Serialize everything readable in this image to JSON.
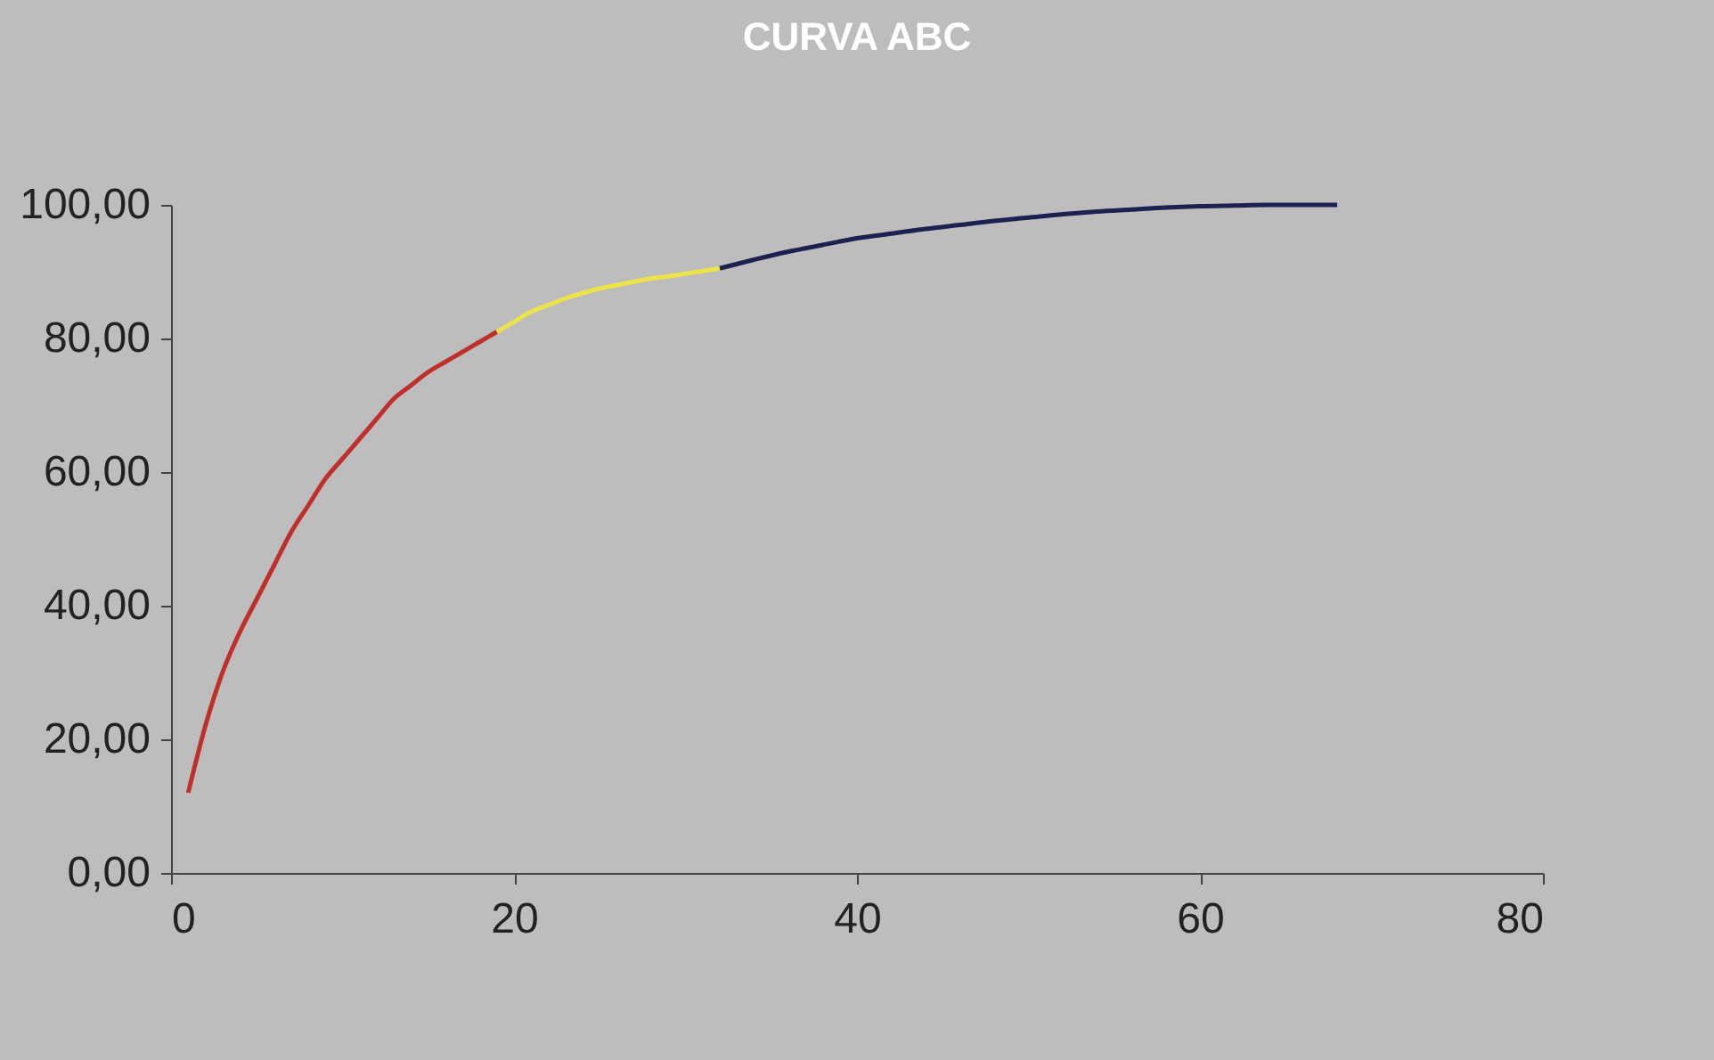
{
  "chart_data": {
    "type": "line",
    "title": "CURVA ABC",
    "xlim": [
      0,
      80
    ],
    "xticks": [
      0,
      20,
      40,
      60,
      80
    ],
    "ylim": [
      0,
      100
    ],
    "yticks": [
      {
        "value": 0,
        "label": "0,00"
      },
      {
        "value": 20,
        "label": "20,00"
      },
      {
        "value": 40,
        "label": "40,00"
      },
      {
        "value": 60,
        "label": "60,00"
      },
      {
        "value": 80,
        "label": "80,00"
      },
      {
        "value": 100,
        "label": "100,00"
      }
    ],
    "series": [
      {
        "color": "#c0302a",
        "x": [
          1,
          2,
          3,
          4,
          5,
          6,
          7,
          8,
          9,
          10,
          11,
          12,
          13,
          14,
          15,
          16,
          17,
          18,
          19
        ],
        "values": [
          12,
          22,
          30,
          36,
          41,
          46,
          51,
          55,
          59,
          62,
          65,
          68,
          71,
          73,
          75,
          76.5,
          78,
          79.5,
          81
        ]
      },
      {
        "color": "#ece24a",
        "x": [
          19,
          20,
          21,
          22,
          23,
          24,
          25,
          26,
          27,
          28,
          29,
          30,
          31,
          32
        ],
        "values": [
          81,
          82.5,
          84,
          85,
          86,
          86.8,
          87.5,
          88,
          88.5,
          89,
          89.3,
          89.7,
          90.1,
          90.5
        ]
      },
      {
        "color": "#1c2150",
        "x": [
          32,
          34,
          36,
          38,
          40,
          42,
          44,
          46,
          48,
          50,
          52,
          54,
          56,
          58,
          60,
          62,
          64,
          66,
          68
        ],
        "values": [
          90.5,
          91.8,
          93,
          94,
          95,
          95.7,
          96.4,
          97,
          97.6,
          98.1,
          98.6,
          99,
          99.3,
          99.6,
          99.8,
          99.9,
          100,
          100,
          100
        ]
      }
    ]
  }
}
